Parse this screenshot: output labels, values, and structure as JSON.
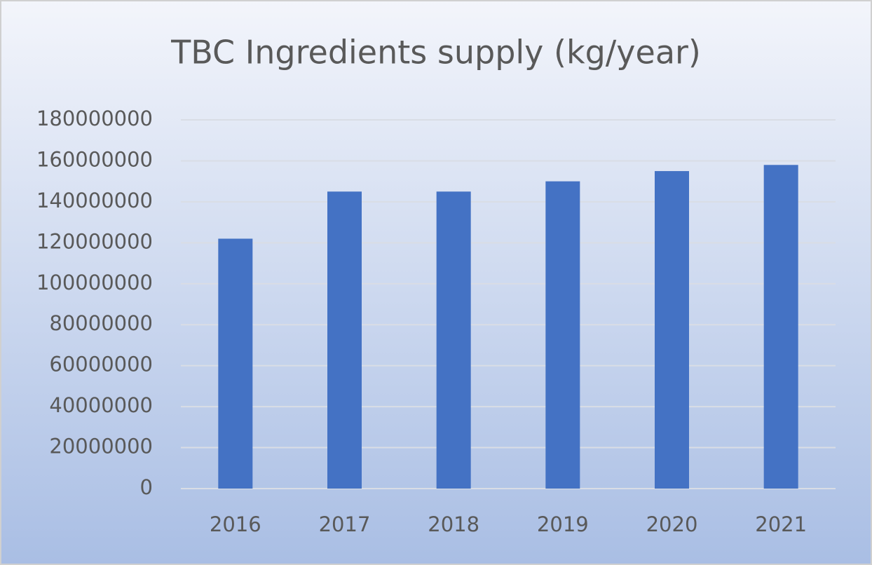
{
  "chart_data": {
    "type": "bar",
    "title": "TBC Ingredients supply (kg/year)",
    "categories": [
      "2016",
      "2017",
      "2018",
      "2019",
      "2020",
      "2021"
    ],
    "values": [
      122000000,
      145000000,
      145000000,
      150000000,
      155000000,
      158000000
    ],
    "color": "#4472c4",
    "ylim": [
      0,
      180000000
    ],
    "yticks": [
      0,
      20000000,
      40000000,
      60000000,
      80000000,
      100000000,
      120000000,
      140000000,
      160000000,
      180000000
    ],
    "grid": true
  }
}
